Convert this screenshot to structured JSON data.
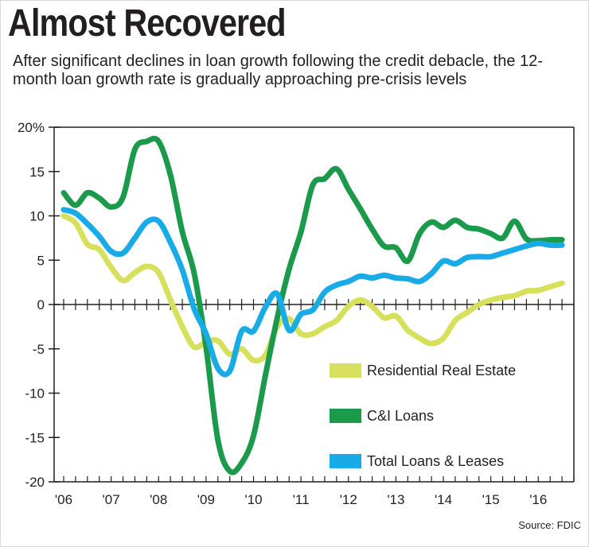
{
  "title": "Almost Recovered",
  "subtitle": "After significant declines in loan growth following the credit debacle, the 12-month loan growth rate is gradually approaching pre-crisis levels",
  "source": "Source: FDIC",
  "chart_data": {
    "type": "line",
    "title": "Almost Recovered",
    "xlabel": "",
    "ylabel": "",
    "xlim": [
      2006.0,
      2016.75
    ],
    "ylim": [
      -20,
      20
    ],
    "y_ticks": [
      20,
      15,
      10,
      5,
      0,
      -5,
      -10,
      -15,
      -20
    ],
    "y_tick_labels": [
      "20%",
      "15",
      "10",
      "5",
      "0",
      "-5",
      "-10",
      "-15",
      "-20"
    ],
    "x_ticks": [
      2006,
      2007,
      2008,
      2009,
      2010,
      2011,
      2012,
      2013,
      2014,
      2015,
      2016
    ],
    "x_tick_labels": [
      "'06",
      "'07",
      "'08",
      "'09",
      "'10",
      "'11",
      "'12",
      "'13",
      "'14",
      "'15",
      "'16"
    ],
    "legend_position": "bottom-right",
    "colors": {
      "Residential Real Estate": "#d6e05c",
      "C&I Loans": "#1a9a4a",
      "Total Loans & Leases": "#18abe6"
    },
    "series": [
      {
        "name": "Residential Real Estate",
        "x": [
          2006.0,
          2006.25,
          2006.5,
          2006.75,
          2007.0,
          2007.25,
          2007.5,
          2007.75,
          2008.0,
          2008.25,
          2008.5,
          2008.75,
          2009.0,
          2009.25,
          2009.5,
          2009.75,
          2010.0,
          2010.25,
          2010.5,
          2010.75,
          2011.0,
          2011.25,
          2011.5,
          2011.75,
          2012.0,
          2012.25,
          2012.5,
          2012.75,
          2013.0,
          2013.25,
          2013.5,
          2013.75,
          2014.0,
          2014.25,
          2014.5,
          2014.75,
          2015.0,
          2015.25,
          2015.5,
          2015.75,
          2016.0,
          2016.25,
          2016.5
        ],
        "values": [
          10.0,
          9.2,
          6.8,
          6.2,
          4.2,
          2.7,
          3.6,
          4.3,
          3.6,
          0.5,
          -2.5,
          -4.8,
          -4.2,
          -4.1,
          -5.6,
          -5.0,
          -6.3,
          -5.7,
          -2.5,
          -1.6,
          -3.3,
          -3.3,
          -2.5,
          -1.8,
          -0.2,
          0.5,
          -0.2,
          -1.5,
          -1.3,
          -2.9,
          -3.8,
          -4.4,
          -3.8,
          -1.8,
          -0.9,
          0.0,
          0.5,
          0.8,
          1.0,
          1.5,
          1.6,
          2.0,
          2.4
        ]
      },
      {
        "name": "C&I Loans",
        "x": [
          2006.0,
          2006.25,
          2006.5,
          2006.75,
          2007.0,
          2007.25,
          2007.5,
          2007.75,
          2008.0,
          2008.25,
          2008.5,
          2008.75,
          2009.0,
          2009.25,
          2009.5,
          2009.75,
          2010.0,
          2010.25,
          2010.5,
          2010.75,
          2011.0,
          2011.25,
          2011.5,
          2011.75,
          2012.0,
          2012.25,
          2012.5,
          2012.75,
          2013.0,
          2013.25,
          2013.5,
          2013.75,
          2014.0,
          2014.25,
          2014.5,
          2014.75,
          2015.0,
          2015.25,
          2015.5,
          2015.75,
          2016.0,
          2016.25,
          2016.5
        ],
        "values": [
          12.6,
          11.2,
          12.6,
          12.0,
          11.0,
          12.1,
          17.5,
          18.4,
          18.4,
          14.6,
          8.2,
          3.5,
          -4.8,
          -15.3,
          -18.8,
          -17.9,
          -14.8,
          -8.0,
          -1.5,
          4.0,
          8.2,
          13.5,
          14.2,
          15.3,
          13.0,
          10.8,
          8.5,
          6.6,
          6.4,
          4.9,
          8.0,
          9.3,
          8.7,
          9.5,
          8.7,
          8.5,
          8.0,
          7.5,
          9.4,
          7.4,
          7.2,
          7.3,
          7.3
        ]
      },
      {
        "name": "Total Loans & Leases",
        "x": [
          2006.0,
          2006.25,
          2006.5,
          2006.75,
          2007.0,
          2007.25,
          2007.5,
          2007.75,
          2008.0,
          2008.25,
          2008.5,
          2008.75,
          2009.0,
          2009.25,
          2009.5,
          2009.75,
          2010.0,
          2010.25,
          2010.5,
          2010.75,
          2011.0,
          2011.25,
          2011.5,
          2011.75,
          2012.0,
          2012.25,
          2012.5,
          2012.75,
          2013.0,
          2013.25,
          2013.5,
          2013.75,
          2014.0,
          2014.25,
          2014.5,
          2014.75,
          2015.0,
          2015.25,
          2015.5,
          2015.75,
          2016.0,
          2016.25,
          2016.5
        ],
        "values": [
          10.7,
          10.3,
          9.1,
          7.7,
          6.0,
          5.8,
          7.5,
          9.3,
          9.4,
          7.0,
          3.9,
          -0.5,
          -3.3,
          -7.2,
          -7.5,
          -3.0,
          -3.0,
          -0.3,
          1.2,
          -2.9,
          -1.1,
          -0.6,
          1.4,
          2.2,
          2.6,
          3.2,
          3.0,
          3.3,
          3.0,
          2.9,
          2.6,
          3.5,
          4.9,
          4.6,
          5.3,
          5.4,
          5.4,
          5.8,
          6.2,
          6.6,
          6.9,
          6.7,
          6.7
        ]
      }
    ]
  }
}
